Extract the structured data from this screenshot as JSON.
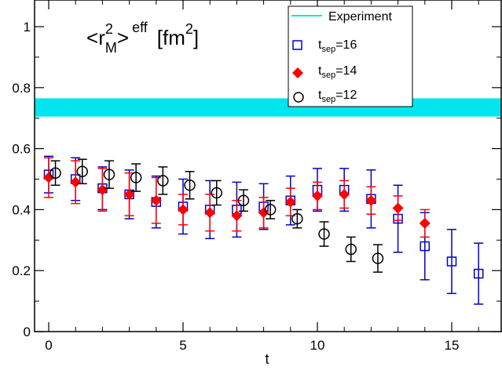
{
  "chart_data": {
    "type": "scatter",
    "xlabel": "t",
    "ylabel": "",
    "xlim": [
      -1,
      17
    ],
    "ylim": [
      0,
      1.05
    ],
    "x_ticks": [
      0,
      5,
      10,
      15
    ],
    "y_ticks": [
      0,
      0.2,
      0.4,
      0.6,
      0.8,
      1
    ],
    "x_tick_labels": [
      "0",
      "5",
      "10",
      "15"
    ],
    "y_tick_labels": [
      "0",
      "0.2",
      "0.4",
      "0.6",
      "0.8",
      "1"
    ],
    "grid": false,
    "legend_position": "top-right",
    "annotation": {
      "lt": "<",
      "r": "r",
      "r_sup": "2",
      "r_sub": "M",
      "gt": ">",
      "eff": "eff",
      "fm_open": "[fm",
      "fm_sup": "2",
      "fm_close": "]"
    },
    "band": {
      "name": "Experiment",
      "y_low": 0.705,
      "y_high": 0.765,
      "color": "#00e5ee"
    },
    "series": [
      {
        "name": "t_sep=16",
        "label_main": "t",
        "label_sub": "sep",
        "label_tail": "=16",
        "marker": "open-square",
        "color": "#0000cc",
        "x_offset": 0,
        "points": [
          {
            "x": 0,
            "y": 0.515,
            "err": 0.06
          },
          {
            "x": 1,
            "y": 0.5,
            "err": 0.07
          },
          {
            "x": 2,
            "y": 0.47,
            "err": 0.07
          },
          {
            "x": 3,
            "y": 0.45,
            "err": 0.08
          },
          {
            "x": 4,
            "y": 0.425,
            "err": 0.085
          },
          {
            "x": 5,
            "y": 0.41,
            "err": 0.09
          },
          {
            "x": 6,
            "y": 0.4,
            "err": 0.095
          },
          {
            "x": 7,
            "y": 0.4,
            "err": 0.09
          },
          {
            "x": 8,
            "y": 0.41,
            "err": 0.075
          },
          {
            "x": 9,
            "y": 0.43,
            "err": 0.08
          },
          {
            "x": 10,
            "y": 0.465,
            "err": 0.07
          },
          {
            "x": 11,
            "y": 0.465,
            "err": 0.07
          },
          {
            "x": 12,
            "y": 0.435,
            "err": 0.095
          },
          {
            "x": 13,
            "y": 0.37,
            "err": 0.11
          },
          {
            "x": 14,
            "y": 0.28,
            "err": 0.11
          },
          {
            "x": 15,
            "y": 0.23,
            "err": 0.105
          },
          {
            "x": 16,
            "y": 0.19,
            "err": 0.1
          }
        ]
      },
      {
        "name": "t_sep=14",
        "label_main": "t",
        "label_sub": "sep",
        "label_tail": "=14",
        "marker": "filled-diamond",
        "color": "#ff0000",
        "x_offset": 0,
        "points": [
          {
            "x": 0,
            "y": 0.505,
            "err": 0.065
          },
          {
            "x": 1,
            "y": 0.49,
            "err": 0.07
          },
          {
            "x": 2,
            "y": 0.465,
            "err": 0.07
          },
          {
            "x": 3,
            "y": 0.45,
            "err": 0.07
          },
          {
            "x": 4,
            "y": 0.43,
            "err": 0.075
          },
          {
            "x": 5,
            "y": 0.4,
            "err": 0.05
          },
          {
            "x": 6,
            "y": 0.39,
            "err": 0.06
          },
          {
            "x": 7,
            "y": 0.38,
            "err": 0.05
          },
          {
            "x": 8,
            "y": 0.39,
            "err": 0.05
          },
          {
            "x": 9,
            "y": 0.425,
            "err": 0.045
          },
          {
            "x": 10,
            "y": 0.445,
            "err": 0.045
          },
          {
            "x": 11,
            "y": 0.45,
            "err": 0.045
          },
          {
            "x": 12,
            "y": 0.43,
            "err": 0.045
          },
          {
            "x": 13,
            "y": 0.405,
            "err": 0.04
          },
          {
            "x": 14,
            "y": 0.355,
            "err": 0.045
          }
        ]
      },
      {
        "name": "t_sep=12",
        "label_main": "t",
        "label_sub": "sep",
        "label_tail": "=12",
        "marker": "open-circle",
        "color": "#000000",
        "x_offset": 0.25,
        "points": [
          {
            "x": 0,
            "y": 0.52,
            "err": 0.04
          },
          {
            "x": 1,
            "y": 0.525,
            "err": 0.04
          },
          {
            "x": 2,
            "y": 0.515,
            "err": 0.045
          },
          {
            "x": 3,
            "y": 0.505,
            "err": 0.045
          },
          {
            "x": 4,
            "y": 0.495,
            "err": 0.045
          },
          {
            "x": 5,
            "y": 0.48,
            "err": 0.045
          },
          {
            "x": 6,
            "y": 0.455,
            "err": 0.04
          },
          {
            "x": 7,
            "y": 0.43,
            "err": 0.035
          },
          {
            "x": 8,
            "y": 0.4,
            "err": 0.03
          },
          {
            "x": 9,
            "y": 0.37,
            "err": 0.03
          },
          {
            "x": 10,
            "y": 0.32,
            "err": 0.04
          },
          {
            "x": 11,
            "y": 0.27,
            "err": 0.04
          },
          {
            "x": 12,
            "y": 0.24,
            "err": 0.045
          }
        ]
      }
    ]
  }
}
